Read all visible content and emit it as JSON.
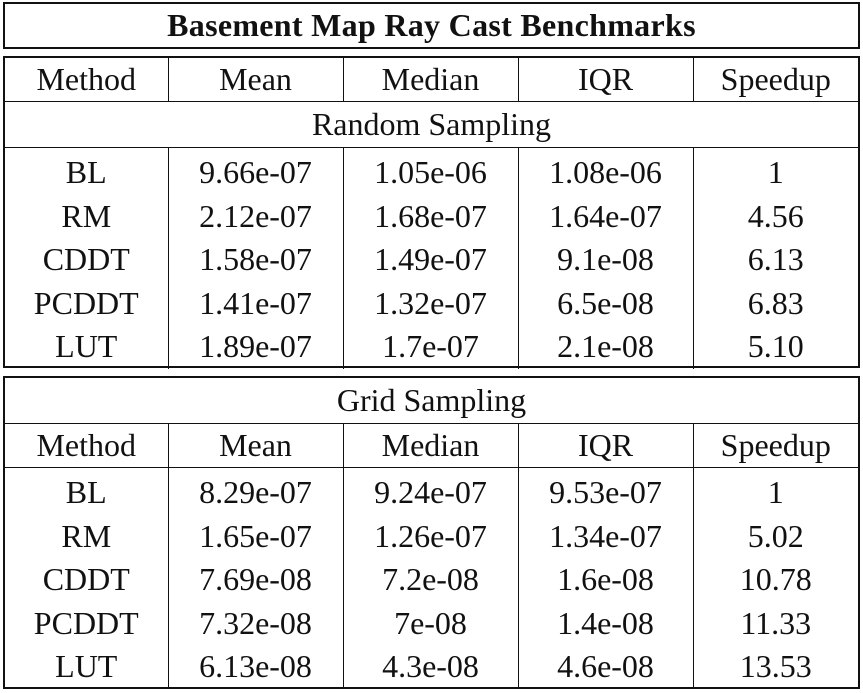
{
  "title": "Basement Map Ray Cast Benchmarks",
  "columns": [
    "Method",
    "Mean",
    "Median",
    "IQR",
    "Speedup"
  ],
  "random": {
    "label": "Random Sampling",
    "rows": [
      [
        "BL",
        "9.66e-07",
        "1.05e-06",
        "1.08e-06",
        "1"
      ],
      [
        "RM",
        "2.12e-07",
        "1.68e-07",
        "1.64e-07",
        "4.56"
      ],
      [
        "CDDT",
        "1.58e-07",
        "1.49e-07",
        "9.1e-08",
        "6.13"
      ],
      [
        "PCDDT",
        "1.41e-07",
        "1.32e-07",
        "6.5e-08",
        "6.83"
      ],
      [
        "LUT",
        "1.89e-07",
        "1.7e-07",
        "2.1e-08",
        "5.10"
      ]
    ]
  },
  "grid": {
    "label": "Grid Sampling",
    "rows": [
      [
        "BL",
        "8.29e-07",
        "9.24e-07",
        "9.53e-07",
        "1"
      ],
      [
        "RM",
        "1.65e-07",
        "1.26e-07",
        "1.34e-07",
        "5.02"
      ],
      [
        "CDDT",
        "7.69e-08",
        "7.2e-08",
        "1.6e-08",
        "10.78"
      ],
      [
        "PCDDT",
        "7.32e-08",
        "7e-08",
        "1.4e-08",
        "11.33"
      ],
      [
        "LUT",
        "6.13e-08",
        "4.3e-08",
        "4.6e-08",
        "13.53"
      ]
    ]
  }
}
